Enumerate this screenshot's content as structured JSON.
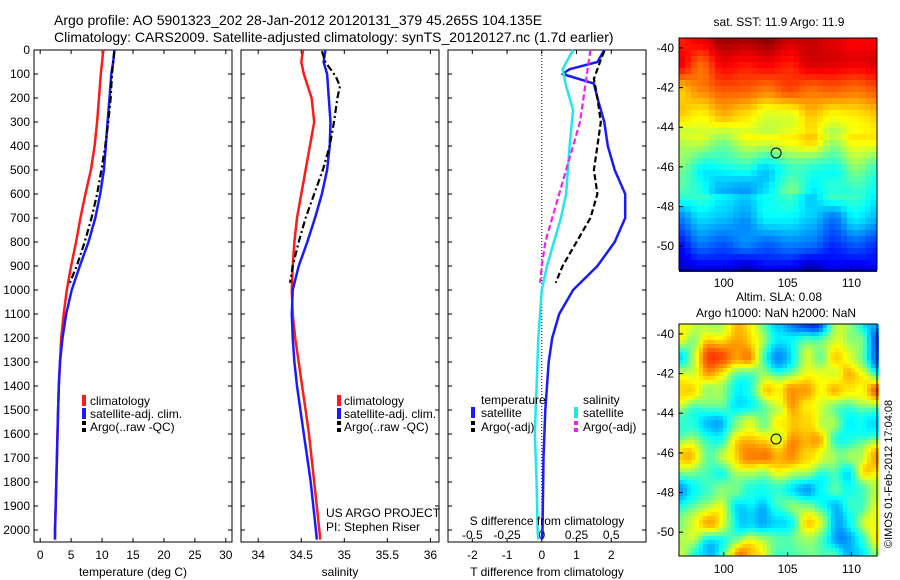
{
  "header": {
    "line1": "Argo profile: AO 5901323_202 28-Jan-2012 20120131_379 45.265S 104.135E",
    "line2": "Climatology: CARS2009. Satellite-adjusted climatology: synTS_20120127.nc (1.7d earlier)"
  },
  "colors": {
    "climatology": "#ff1a1a",
    "satellite": "#1a1aff",
    "argo": "#000000",
    "sal_satellite": "#22e6ee",
    "sal_argo": "#ee22ee"
  },
  "project": {
    "line1": "US ARGO PROJECT",
    "line2": "PI: Stephen Riser"
  },
  "credit": "©IMOS 01-Feb-2012 17:04:08",
  "chart_data": [
    {
      "type": "line",
      "panel": "temperature",
      "xlabel": "temperature (deg C)",
      "xlim": [
        -1,
        31
      ],
      "xticks": [
        "0",
        "5",
        "10",
        "15",
        "20",
        "25",
        "30"
      ],
      "ylim": [
        2050,
        0
      ],
      "yticks": [
        "0",
        "100",
        "200",
        "300",
        "400",
        "500",
        "600",
        "700",
        "800",
        "900",
        "1000",
        "1100",
        "1200",
        "1300",
        "1400",
        "1500",
        "1600",
        "1700",
        "1800",
        "1900",
        "2000"
      ],
      "legend": [
        "climatology",
        "satellite-adj. clim.",
        "Argo(..raw -QC)"
      ],
      "series": [
        {
          "name": "climatology",
          "style": "solid",
          "color": "#ff1a1a",
          "points": [
            [
              10.2,
              0
            ],
            [
              10.0,
              50
            ],
            [
              9.8,
              100
            ],
            [
              9.5,
              200
            ],
            [
              9.2,
              300
            ],
            [
              8.8,
              400
            ],
            [
              8.2,
              500
            ],
            [
              7.3,
              600
            ],
            [
              6.5,
              700
            ],
            [
              5.8,
              800
            ],
            [
              5.0,
              900
            ],
            [
              4.3,
              1000
            ],
            [
              3.8,
              1100
            ],
            [
              3.4,
              1200
            ],
            [
              3.2,
              1300
            ],
            [
              3.0,
              1400
            ],
            [
              2.9,
              1500
            ],
            [
              2.8,
              1600
            ],
            [
              2.7,
              1700
            ],
            [
              2.6,
              1800
            ],
            [
              2.5,
              1900
            ],
            [
              2.4,
              2000
            ],
            [
              2.4,
              2040
            ]
          ]
        },
        {
          "name": "satellite-adj. clim.",
          "style": "solid",
          "color": "#1a1aff",
          "points": [
            [
              12.0,
              0
            ],
            [
              11.8,
              50
            ],
            [
              11.5,
              100
            ],
            [
              11.2,
              200
            ],
            [
              10.9,
              300
            ],
            [
              10.6,
              400
            ],
            [
              10.3,
              500
            ],
            [
              9.7,
              600
            ],
            [
              8.9,
              700
            ],
            [
              7.8,
              800
            ],
            [
              6.4,
              900
            ],
            [
              5.1,
              1000
            ],
            [
              4.2,
              1100
            ],
            [
              3.6,
              1200
            ],
            [
              3.2,
              1300
            ],
            [
              3.0,
              1400
            ],
            [
              2.9,
              1500
            ],
            [
              2.8,
              1600
            ],
            [
              2.7,
              1700
            ],
            [
              2.6,
              1800
            ],
            [
              2.5,
              1900
            ],
            [
              2.4,
              2000
            ],
            [
              2.4,
              2040
            ]
          ]
        },
        {
          "name": "Argo(..raw -QC)",
          "style": "dashdot",
          "color": "#000000",
          "points": [
            [
              12.0,
              5
            ],
            [
              11.8,
              50
            ],
            [
              11.6,
              100
            ],
            [
              11.4,
              200
            ],
            [
              11.0,
              300
            ],
            [
              10.5,
              400
            ],
            [
              9.9,
              500
            ],
            [
              9.2,
              600
            ],
            [
              8.3,
              700
            ],
            [
              7.2,
              800
            ],
            [
              5.9,
              900
            ],
            [
              4.8,
              970
            ]
          ]
        }
      ]
    },
    {
      "type": "line",
      "panel": "salinity",
      "xlabel": "salinity",
      "xlim": [
        33.8,
        36.1
      ],
      "xticks": [
        "34",
        "34.5",
        "35",
        "35.5",
        "36"
      ],
      "ylim": [
        2050,
        0
      ],
      "legend": [
        "climatology",
        "satellite-adj. clim.",
        "Argo(..raw -QC)"
      ],
      "series": [
        {
          "name": "climatology",
          "style": "solid",
          "color": "#ff1a1a",
          "points": [
            [
              34.52,
              0
            ],
            [
              34.5,
              50
            ],
            [
              34.53,
              100
            ],
            [
              34.62,
              200
            ],
            [
              34.65,
              300
            ],
            [
              34.6,
              400
            ],
            [
              34.55,
              500
            ],
            [
              34.5,
              600
            ],
            [
              34.45,
              700
            ],
            [
              34.42,
              800
            ],
            [
              34.4,
              900
            ],
            [
              34.39,
              1000
            ],
            [
              34.4,
              1100
            ],
            [
              34.43,
              1200
            ],
            [
              34.47,
              1300
            ],
            [
              34.51,
              1400
            ],
            [
              34.55,
              1500
            ],
            [
              34.59,
              1600
            ],
            [
              34.62,
              1700
            ],
            [
              34.65,
              1800
            ],
            [
              34.68,
              1900
            ],
            [
              34.71,
              2000
            ],
            [
              34.72,
              2040
            ]
          ]
        },
        {
          "name": "satellite-adj. clim.",
          "style": "solid",
          "color": "#1a1aff",
          "points": [
            [
              34.78,
              0
            ],
            [
              34.76,
              50
            ],
            [
              34.8,
              100
            ],
            [
              34.82,
              200
            ],
            [
              34.84,
              300
            ],
            [
              34.83,
              400
            ],
            [
              34.8,
              500
            ],
            [
              34.74,
              600
            ],
            [
              34.66,
              700
            ],
            [
              34.57,
              800
            ],
            [
              34.47,
              900
            ],
            [
              34.4,
              1000
            ],
            [
              34.39,
              1100
            ],
            [
              34.4,
              1200
            ],
            [
              34.42,
              1300
            ],
            [
              34.45,
              1400
            ],
            [
              34.49,
              1500
            ],
            [
              34.53,
              1600
            ],
            [
              34.57,
              1700
            ],
            [
              34.61,
              1800
            ],
            [
              34.64,
              1900
            ],
            [
              34.67,
              2000
            ],
            [
              34.68,
              2040
            ]
          ]
        },
        {
          "name": "Argo(..raw -QC)",
          "style": "dashdot",
          "color": "#000000",
          "points": [
            [
              34.74,
              5
            ],
            [
              34.78,
              50
            ],
            [
              34.9,
              110
            ],
            [
              34.95,
              150
            ],
            [
              34.92,
              200
            ],
            [
              34.88,
              300
            ],
            [
              34.83,
              400
            ],
            [
              34.75,
              500
            ],
            [
              34.65,
              600
            ],
            [
              34.55,
              700
            ],
            [
              34.47,
              800
            ],
            [
              34.4,
              900
            ],
            [
              34.37,
              970
            ]
          ]
        }
      ]
    },
    {
      "type": "line",
      "panel": "difference",
      "xlabel": "T difference from climatology",
      "xlabel2": "S difference from climatology",
      "xlim": [
        -2.7,
        3.0
      ],
      "xticks": [
        "-2",
        "-1",
        "0",
        "1",
        "2"
      ],
      "xticks_top": [
        "-0.5",
        "-0.25",
        "0",
        "0.25",
        "0.5"
      ],
      "ylim": [
        2050,
        0
      ],
      "legend_temperature_title": "temperature",
      "legend_salinity_title": "salinity",
      "legend_temperature": [
        "satellite",
        "Argo(-adj)"
      ],
      "legend_salinity": [
        "satellite",
        "Argo(-adj)"
      ],
      "series": [
        {
          "name": "T satellite",
          "style": "solid",
          "color": "#1a1aff",
          "points": [
            [
              1.8,
              0
            ],
            [
              1.6,
              50
            ],
            [
              0.8,
              80
            ],
            [
              0.6,
              100
            ],
            [
              1.5,
              140
            ],
            [
              1.6,
              200
            ],
            [
              1.8,
              300
            ],
            [
              1.9,
              400
            ],
            [
              2.1,
              500
            ],
            [
              2.4,
              600
            ],
            [
              2.4,
              700
            ],
            [
              2.1,
              800
            ],
            [
              1.6,
              900
            ],
            [
              0.9,
              1000
            ],
            [
              0.5,
              1100
            ],
            [
              0.3,
              1200
            ],
            [
              0.2,
              1300
            ],
            [
              0.1,
              1500
            ],
            [
              0.05,
              1700
            ],
            [
              0.02,
              2000
            ],
            [
              0.0,
              2040
            ]
          ]
        },
        {
          "name": "T Argo(-adj)",
          "style": "dashed",
          "color": "#000000",
          "points": [
            [
              1.8,
              5
            ],
            [
              1.7,
              40
            ],
            [
              1.6,
              80
            ],
            [
              1.5,
              120
            ],
            [
              1.6,
              200
            ],
            [
              1.7,
              300
            ],
            [
              1.6,
              400
            ],
            [
              1.5,
              500
            ],
            [
              1.6,
              600
            ],
            [
              1.4,
              700
            ],
            [
              1.0,
              800
            ],
            [
              0.6,
              900
            ],
            [
              0.4,
              970
            ]
          ]
        },
        {
          "name": "S satellite",
          "style": "solid",
          "color": "#22e6ee",
          "points": [
            [
              0.9,
              0
            ],
            [
              0.6,
              80
            ],
            [
              0.7,
              150
            ],
            [
              0.9,
              250
            ],
            [
              0.8,
              400
            ],
            [
              0.75,
              500
            ],
            [
              0.7,
              600
            ],
            [
              0.55,
              700
            ],
            [
              0.35,
              800
            ],
            [
              0.15,
              900
            ],
            [
              0.0,
              1000
            ],
            [
              -0.1,
              1200
            ],
            [
              -0.15,
              1400
            ],
            [
              -0.2,
              1600
            ],
            [
              -0.15,
              1800
            ],
            [
              -0.12,
              2000
            ],
            [
              -0.1,
              2040
            ]
          ]
        },
        {
          "name": "S Argo(-adj)",
          "style": "dashed",
          "color": "#ee22ee",
          "points": [
            [
              1.4,
              0
            ],
            [
              1.3,
              100
            ],
            [
              1.2,
              200
            ],
            [
              1.1,
              300
            ],
            [
              0.9,
              400
            ],
            [
              0.7,
              500
            ],
            [
              0.5,
              600
            ],
            [
              0.3,
              700
            ],
            [
              0.1,
              800
            ],
            [
              0.0,
              900
            ],
            [
              -0.05,
              970
            ]
          ]
        }
      ]
    },
    {
      "type": "heatmap",
      "panel": "sst",
      "title": "sat. SST: 11.9 Argo: 11.9",
      "xticks": [
        "100",
        "105",
        "110"
      ],
      "yticks": [
        "-40",
        "-42",
        "-44",
        "-46",
        "-48",
        "-50"
      ],
      "xlim": [
        96.5,
        112
      ],
      "ylim": [
        -51.2,
        -39.5
      ],
      "marker": [
        104.1,
        -45.3
      ]
    },
    {
      "type": "heatmap",
      "panel": "sla",
      "title": "Altim. SLA: 0.08",
      "subtitle": "Argo h1000: NaN h2000: NaN",
      "xticks": [
        "100",
        "105",
        "110"
      ],
      "yticks": [
        "-40",
        "-42",
        "-44",
        "-46",
        "-48",
        "-50"
      ],
      "xlim": [
        96.5,
        112
      ],
      "ylim": [
        -51.2,
        -39.5
      ],
      "marker": [
        104.1,
        -45.3
      ]
    }
  ]
}
